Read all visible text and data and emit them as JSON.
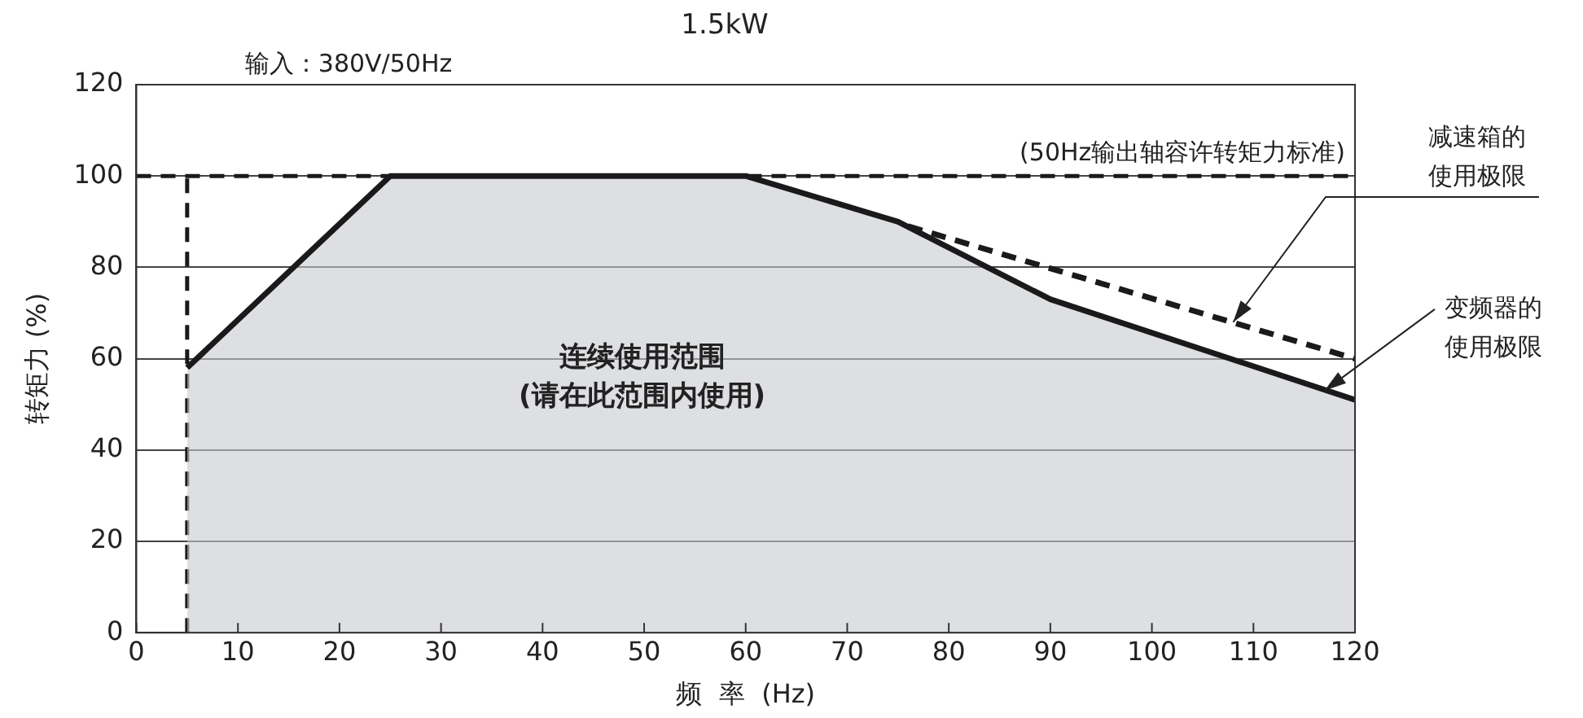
{
  "chart_data": {
    "type": "area",
    "title": "1.5kW",
    "subtitle": "输入：380V/50Hz",
    "xlabel": "频  率  (Hz)",
    "ylabel": "转矩力 (%)",
    "xlim": [
      0,
      120
    ],
    "xticks": [
      0,
      10,
      20,
      30,
      40,
      50,
      60,
      70,
      80,
      90,
      100,
      110,
      120
    ],
    "ylim": [
      0,
      120
    ],
    "yticks": [
      0,
      20,
      40,
      60,
      80,
      100,
      120
    ],
    "grid": "y",
    "legend": false,
    "series": [
      {
        "color": "#1a1a1a",
        "x": [
          5,
          25,
          60,
          75,
          90,
          120
        ],
        "values": [
          58,
          100,
          100,
          90,
          73,
          51
        ]
      },
      {
        "type": "line",
        "color": "#1a1a1a",
        "line_style": "dashed",
        "x": [
          76,
          120
        ],
        "values": [
          89,
          60
        ]
      }
    ],
    "ref_lines": [
      {
        "axis": "y",
        "value": 100,
        "label": "(50Hz输出轴容许转矩力标准)",
        "color": "#1a1a1a",
        "line_style": "dashed"
      },
      {
        "axis": "x",
        "value": 5,
        "color": "#1a1a1a",
        "line_style": "dashed"
      }
    ],
    "annotations": [
      "连续使用范围\n(请在此范围内使用)",
      {
        "text": "减速箱的使用极限",
        "x": 108,
        "y": 68
      },
      {
        "text": "变频器的使用极限",
        "x": 117,
        "y": 53
      }
    ]
  }
}
